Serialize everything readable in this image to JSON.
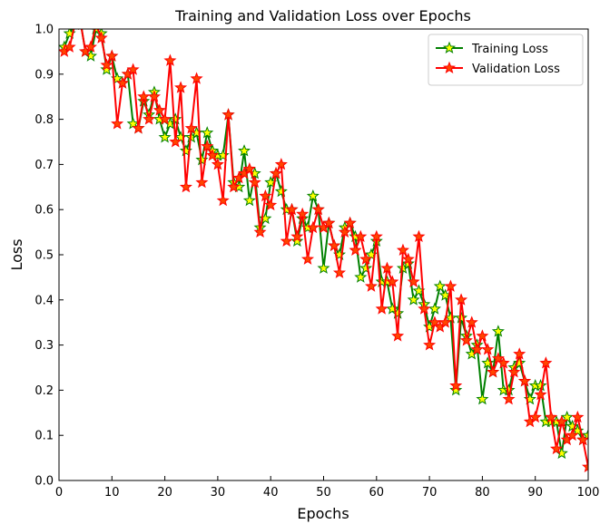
{
  "chart_data": {
    "type": "line",
    "title": "Training and Validation Loss over Epochs",
    "xlabel": "Epochs",
    "ylabel": "Loss",
    "xlim": [
      0,
      100
    ],
    "ylim": [
      0.0,
      1.0
    ],
    "xticks": [
      "0",
      "10",
      "20",
      "30",
      "40",
      "50",
      "60",
      "70",
      "80",
      "90",
      "100"
    ],
    "yticks": [
      "0.0",
      "0.1",
      "0.2",
      "0.3",
      "0.4",
      "0.5",
      "0.6",
      "0.7",
      "0.8",
      "0.9",
      "1.0"
    ],
    "grid": false,
    "legend": "upper-right",
    "x": [
      1,
      2,
      3,
      4,
      5,
      6,
      7,
      8,
      9,
      10,
      11,
      12,
      13,
      14,
      15,
      16,
      17,
      18,
      19,
      20,
      21,
      22,
      23,
      24,
      25,
      26,
      27,
      28,
      29,
      30,
      31,
      32,
      33,
      34,
      35,
      36,
      37,
      38,
      39,
      40,
      41,
      42,
      43,
      44,
      45,
      46,
      47,
      48,
      49,
      50,
      51,
      52,
      53,
      54,
      55,
      56,
      57,
      58,
      59,
      60,
      61,
      62,
      63,
      64,
      65,
      66,
      67,
      68,
      69,
      70,
      71,
      72,
      73,
      74,
      75,
      76,
      77,
      78,
      79,
      80,
      81,
      82,
      83,
      84,
      85,
      86,
      87,
      88,
      89,
      90,
      91,
      92,
      93,
      94,
      95,
      96,
      97,
      98,
      99,
      100
    ],
    "series": [
      {
        "name": "Training Loss",
        "color": "#008000",
        "marker_fill": "#ffff00",
        "values": [
          0.96,
          0.99,
          1.01,
          1.02,
          0.95,
          0.94,
          1.0,
          0.99,
          0.91,
          0.94,
          0.89,
          0.88,
          0.9,
          0.79,
          0.78,
          0.84,
          0.81,
          0.86,
          0.8,
          0.76,
          0.79,
          0.8,
          0.76,
          0.73,
          0.76,
          0.77,
          0.71,
          0.77,
          0.73,
          0.72,
          0.72,
          0.81,
          0.66,
          0.65,
          0.73,
          0.62,
          0.68,
          0.56,
          0.58,
          0.66,
          0.68,
          0.64,
          0.6,
          0.6,
          0.53,
          0.58,
          0.56,
          0.63,
          0.6,
          0.47,
          0.57,
          0.52,
          0.5,
          0.56,
          0.57,
          0.54,
          0.45,
          0.47,
          0.5,
          0.53,
          0.44,
          0.44,
          0.38,
          0.37,
          0.47,
          0.48,
          0.4,
          0.42,
          0.39,
          0.34,
          0.38,
          0.43,
          0.41,
          0.36,
          0.2,
          0.36,
          0.32,
          0.28,
          0.3,
          0.18,
          0.26,
          0.24,
          0.33,
          0.2,
          0.2,
          0.25,
          0.26,
          0.22,
          0.18,
          0.21,
          0.21,
          0.13,
          0.13,
          0.13,
          0.06,
          0.14,
          0.12,
          0.11,
          0.09,
          0.1
        ]
      },
      {
        "name": "Validation Loss",
        "color": "#ff0000",
        "marker_fill": "#ff4500",
        "values": [
          0.95,
          0.96,
          1.01,
          1.02,
          0.95,
          0.96,
          1.01,
          0.98,
          0.92,
          0.94,
          0.79,
          0.88,
          0.9,
          0.91,
          0.78,
          0.85,
          0.8,
          0.85,
          0.82,
          0.8,
          0.93,
          0.75,
          0.87,
          0.65,
          0.78,
          0.89,
          0.66,
          0.74,
          0.72,
          0.7,
          0.62,
          0.81,
          0.65,
          0.67,
          0.68,
          0.69,
          0.66,
          0.55,
          0.63,
          0.61,
          0.68,
          0.7,
          0.53,
          0.6,
          0.54,
          0.59,
          0.49,
          0.56,
          0.6,
          0.56,
          0.57,
          0.52,
          0.46,
          0.55,
          0.57,
          0.51,
          0.54,
          0.49,
          0.43,
          0.54,
          0.38,
          0.47,
          0.44,
          0.32,
          0.51,
          0.49,
          0.44,
          0.54,
          0.38,
          0.3,
          0.35,
          0.34,
          0.35,
          0.43,
          0.21,
          0.4,
          0.31,
          0.35,
          0.29,
          0.32,
          0.29,
          0.24,
          0.27,
          0.26,
          0.18,
          0.24,
          0.28,
          0.22,
          0.13,
          0.14,
          0.19,
          0.26,
          0.14,
          0.07,
          0.13,
          0.09,
          0.1,
          0.14,
          0.09,
          0.03
        ]
      }
    ]
  }
}
